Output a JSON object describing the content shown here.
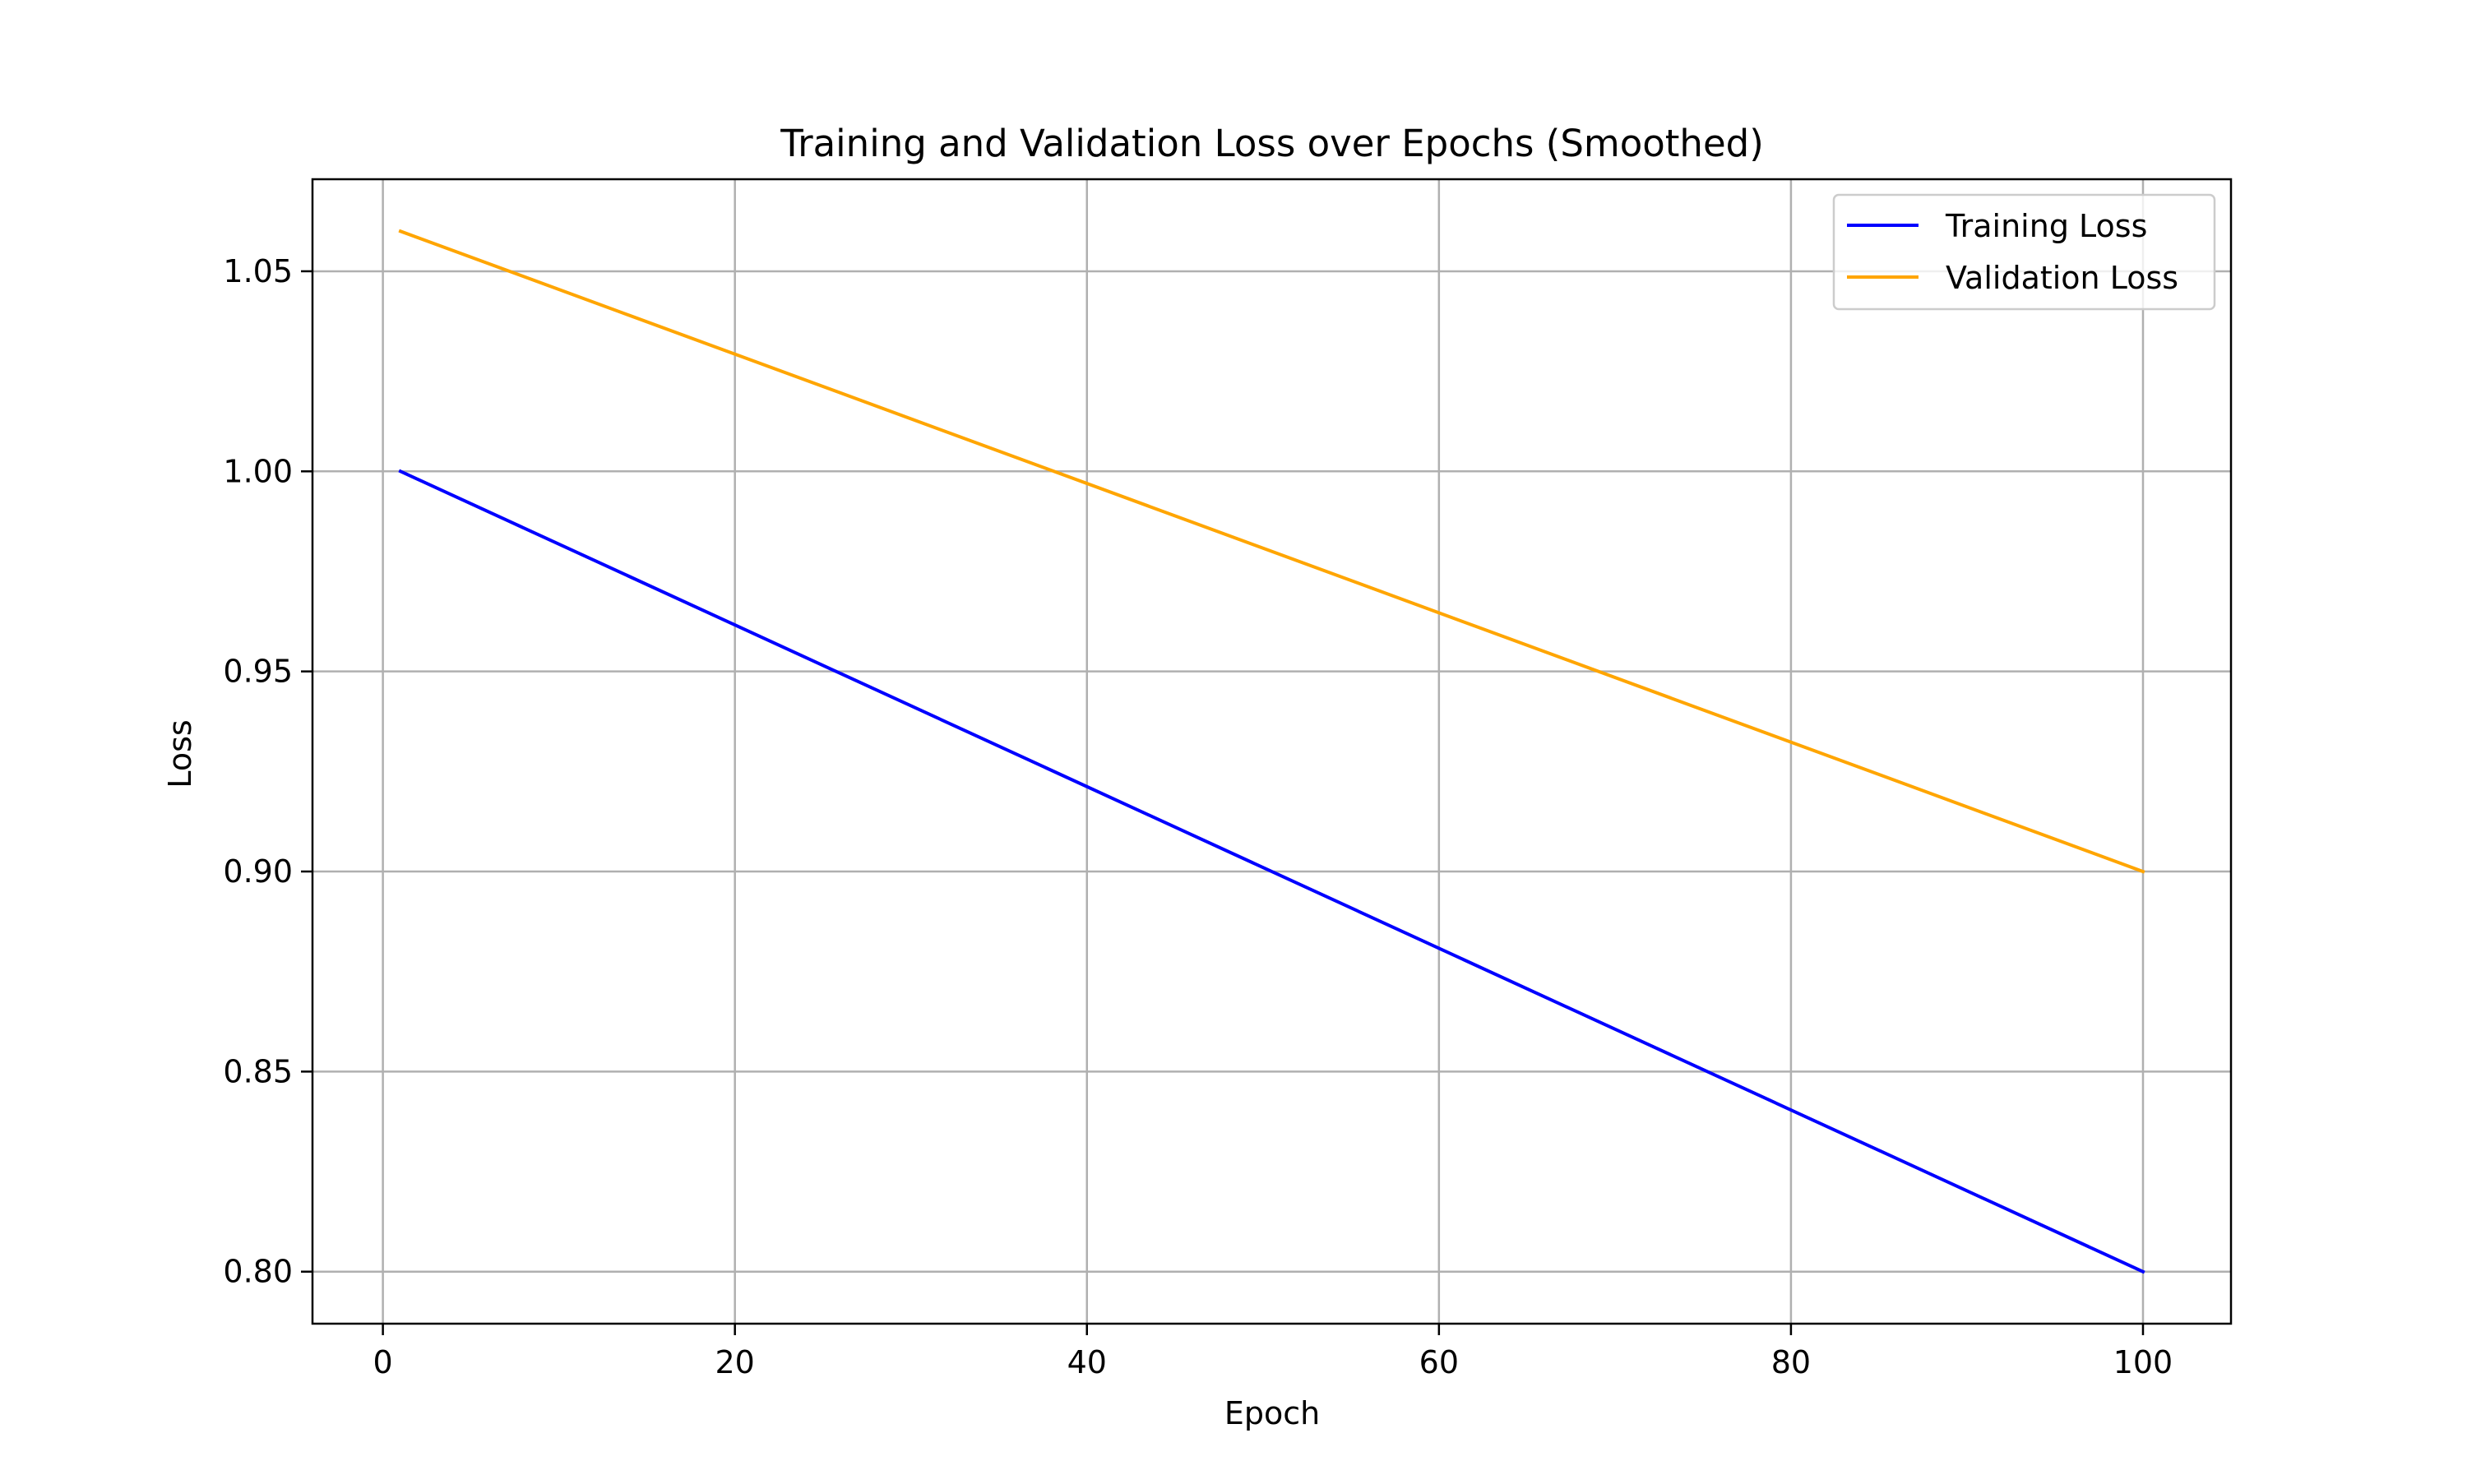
{
  "chart_data": {
    "type": "line",
    "title": "Training and Validation Loss over Epochs (Smoothed)",
    "xlabel": "Epoch",
    "ylabel": "Loss",
    "xlim": [
      -4,
      105
    ],
    "ylim": [
      0.787,
      1.073
    ],
    "x_ticks": [
      0,
      20,
      40,
      60,
      80,
      100
    ],
    "y_ticks": [
      0.8,
      0.85,
      0.9,
      0.95,
      1.0,
      1.05
    ],
    "y_tick_labels": [
      "0.80",
      "0.85",
      "0.90",
      "0.95",
      "1.00",
      "1.05"
    ],
    "grid": true,
    "legend_position": "top-right",
    "series": [
      {
        "name": "Training Loss",
        "color": "#0000ff",
        "x": [
          1,
          100
        ],
        "values": [
          1.0,
          0.8
        ]
      },
      {
        "name": "Validation Loss",
        "color": "#ffa500",
        "x": [
          1,
          100
        ],
        "values": [
          1.06,
          0.9
        ]
      }
    ]
  }
}
